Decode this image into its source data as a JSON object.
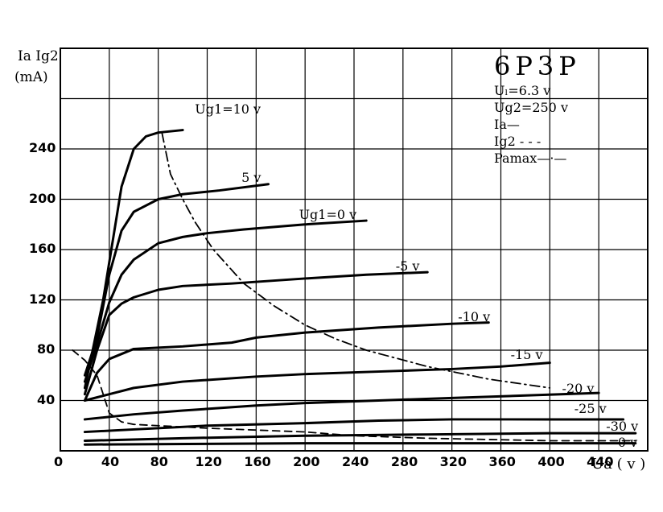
{
  "chart_data": {
    "type": "line",
    "title_box": {
      "tube": "6P3P",
      "uf": "Uₗ=6.3 v",
      "ug2": "Ug2=250 v",
      "ia_legend": "Ia—",
      "ig2_legend": "Ig2 - - -",
      "pamax_legend": "Pamax—·—"
    },
    "ylabel_line1": "Ia Ig2",
    "ylabel_line2": "(mA)",
    "xlabel": "Ua ( v )",
    "xlim": [
      0,
      480
    ],
    "ylim": [
      0,
      320
    ],
    "x_ticks": [
      0,
      40,
      80,
      120,
      160,
      200,
      240,
      280,
      320,
      360,
      400,
      440
    ],
    "y_ticks": [
      40,
      80,
      120,
      160,
      200,
      240
    ],
    "grid": true,
    "series": [
      {
        "name": "Ug1=10 v",
        "style": "solid",
        "x": [
          20,
          35,
          50,
          60,
          70,
          80,
          100
        ],
        "y": [
          50,
          120,
          210,
          240,
          250,
          253,
          255
        ]
      },
      {
        "name": "5 v",
        "style": "solid",
        "x": [
          20,
          30,
          40,
          50,
          60,
          80,
          100,
          130,
          170
        ],
        "y": [
          60,
          90,
          140,
          175,
          190,
          200,
          204,
          207,
          212
        ]
      },
      {
        "name": "Ug1=0 v",
        "style": "solid",
        "x": [
          20,
          30,
          40,
          50,
          60,
          80,
          100,
          120,
          150,
          200,
          250
        ],
        "y": [
          55,
          85,
          118,
          140,
          152,
          165,
          170,
          173,
          176,
          180,
          183
        ]
      },
      {
        "name": "-5 v",
        "style": "solid",
        "x": [
          20,
          30,
          40,
          50,
          60,
          80,
          100,
          140,
          200,
          250,
          300
        ],
        "y": [
          45,
          80,
          108,
          117,
          122,
          128,
          131,
          133,
          137,
          140,
          142
        ]
      },
      {
        "name": "-10 v",
        "style": "solid",
        "x": [
          20,
          30,
          40,
          60,
          80,
          100,
          140,
          160,
          200,
          260,
          320,
          350
        ],
        "y": [
          40,
          62,
          73,
          81,
          82,
          83,
          86,
          90,
          94,
          98,
          101,
          102
        ]
      },
      {
        "name": "-15 v",
        "style": "solid",
        "x": [
          20,
          40,
          60,
          100,
          160,
          200,
          260,
          320,
          360,
          400
        ],
        "y": [
          40,
          45,
          50,
          55,
          59,
          61,
          63,
          65,
          67,
          70
        ]
      },
      {
        "name": "-20 v",
        "style": "solid",
        "x": [
          20,
          60,
          100,
          160,
          200,
          260,
          320,
          380,
          440
        ],
        "y": [
          25,
          29,
          32,
          36,
          38,
          40,
          42,
          44,
          46
        ]
      },
      {
        "name": "-25 v",
        "style": "solid",
        "x": [
          20,
          60,
          120,
          200,
          260,
          320,
          400,
          460
        ],
        "y": [
          15,
          17,
          20,
          22,
          24,
          25,
          25,
          25
        ]
      },
      {
        "name": "-30 v",
        "style": "solid",
        "x": [
          20,
          100,
          200,
          300,
          400,
          470
        ],
        "y": [
          8,
          10,
          12,
          13,
          14,
          14
        ]
      },
      {
        "name": "-0 v",
        "style": "solid",
        "x": [
          20,
          200,
          400,
          470
        ],
        "y": [
          5,
          6,
          6,
          6
        ]
      },
      {
        "name": "Ig2",
        "style": "dashed",
        "x": [
          10,
          20,
          30,
          40,
          50,
          60,
          80,
          120,
          200,
          240,
          300,
          400,
          470
        ],
        "y": [
          80,
          72,
          60,
          30,
          23,
          21,
          20,
          18,
          15,
          12,
          10,
          8,
          8
        ]
      },
      {
        "name": "Pamax",
        "style": "dashdot",
        "x": [
          83,
          90,
          100,
          110,
          125,
          150,
          175,
          200,
          225,
          250,
          300,
          350,
          400
        ],
        "y": [
          253,
          220,
          200,
          182,
          160,
          133,
          115,
          100,
          89,
          80,
          67,
          57,
          50
        ]
      }
    ],
    "curve_labels": [
      {
        "text": "Ug1=10 v",
        "x": 110,
        "y": 270
      },
      {
        "text": "5 v",
        "x": 148,
        "y": 216
      },
      {
        "text": "Ug1=0 v",
        "x": 195,
        "y": 186
      },
      {
        "text": "-5 v",
        "x": 274,
        "y": 145
      },
      {
        "text": "-10 v",
        "x": 325,
        "y": 105
      },
      {
        "text": "-15 v",
        "x": 368,
        "y": 75
      },
      {
        "text": "-20 v",
        "x": 410,
        "y": 48
      },
      {
        "text": "-25 v",
        "x": 420,
        "y": 32
      },
      {
        "text": "-30 v",
        "x": 446,
        "y": 18
      },
      {
        "text": "-0 v",
        "x": 452,
        "y": 5
      }
    ]
  }
}
